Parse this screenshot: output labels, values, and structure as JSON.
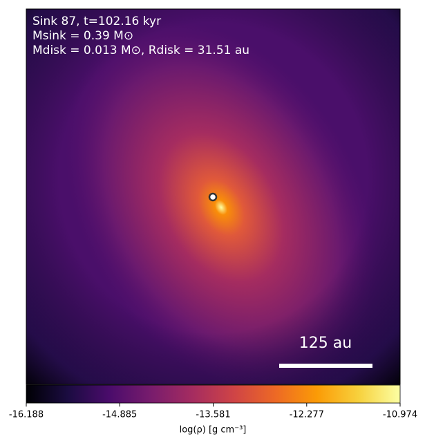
{
  "chart_data": {
    "type": "density-map",
    "annotations": [
      "Sink 87, t=102.16 kyr",
      "Msink = 0.39 M⊙",
      "Mdisk = 0.013 M⊙, Rdisk = 31.51 au"
    ],
    "scale_bar_label": "125 au",
    "colormap": "inferno",
    "colorbar_label": "log(ρ) [g cm⁻³]",
    "clim": [
      -16.188,
      -10.974
    ],
    "cticks": [
      -16.188,
      -14.885,
      -13.581,
      -12.277,
      -10.974
    ]
  }
}
